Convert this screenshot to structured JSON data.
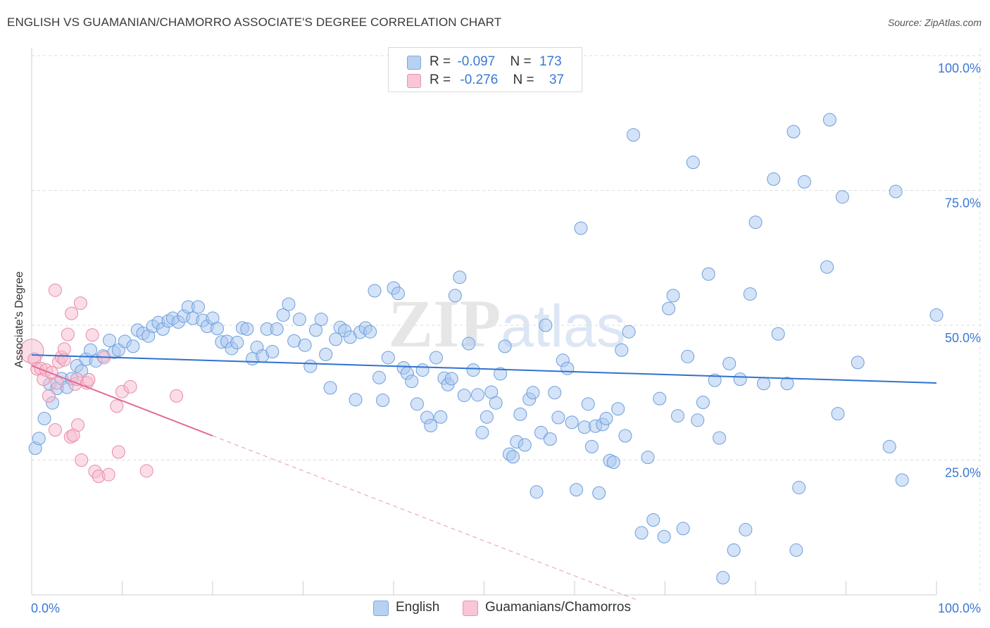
{
  "title": "ENGLISH VS GUAMANIAN/CHAMORRO ASSOCIATE'S DEGREE CORRELATION CHART",
  "source": "Source: ZipAtlas.com",
  "colors": {
    "blue_fill": "#a9c8f0",
    "blue_stroke": "#6c9fdc",
    "blue_line": "#2f72d0",
    "pink_fill": "#f6bccd",
    "pink_stroke": "#e88aa8",
    "pink_line": "#e36a94",
    "axis_text": "#3b78d4",
    "grid": "#dcdcdc"
  },
  "legend": {
    "rows": [
      {
        "r_label": "R =",
        "r_value": "-0.097",
        "n_label": "N =",
        "n_value": "173"
      },
      {
        "r_label": "R =",
        "r_value": "-0.276",
        "n_label": "N =",
        "n_value": "37"
      }
    ]
  },
  "bottom_legend": {
    "english": "English",
    "guam": "Guamanians/Chamorros"
  },
  "chart_data": {
    "type": "scatter",
    "title": "ENGLISH VS GUAMANIAN/CHAMORRO ASSOCIATE'S DEGREE CORRELATION CHART",
    "xlabel": "",
    "ylabel": "Associate's Degree",
    "xlim": [
      0,
      100
    ],
    "ylim": [
      0,
      100
    ],
    "x_tick_labels": [
      "0.0%",
      "100.0%"
    ],
    "y_tick_labels": [
      "25.0%",
      "50.0%",
      "75.0%",
      "100.0%"
    ],
    "y_ticks": [
      25,
      50,
      75,
      100
    ],
    "grid": "horizontal dashed",
    "legend_position": "top-center",
    "watermark": "ZIPatlas",
    "series": [
      {
        "name": "English",
        "R": -0.097,
        "N": 173,
        "trend": {
          "x": [
            0,
            100
          ],
          "y": [
            44.5,
            39.3
          ]
        },
        "points": [
          [
            0.4,
            27.2
          ],
          [
            0.8,
            29.0
          ],
          [
            1.4,
            32.7
          ],
          [
            2.0,
            39.1
          ],
          [
            2.3,
            35.6
          ],
          [
            2.8,
            38.3
          ],
          [
            3.3,
            40.1
          ],
          [
            3.9,
            38.5
          ],
          [
            4.4,
            40.1
          ],
          [
            5.0,
            42.5
          ],
          [
            5.5,
            41.5
          ],
          [
            6.0,
            43.7
          ],
          [
            6.5,
            45.4
          ],
          [
            7.1,
            43.4
          ],
          [
            7.9,
            44.3
          ],
          [
            8.6,
            47.2
          ],
          [
            9.1,
            45.0
          ],
          [
            9.6,
            45.4
          ],
          [
            10.3,
            47.0
          ],
          [
            11.2,
            46.1
          ],
          [
            11.7,
            49.1
          ],
          [
            12.3,
            48.5
          ],
          [
            12.9,
            48.0
          ],
          [
            13.4,
            49.8
          ],
          [
            14.0,
            50.5
          ],
          [
            14.5,
            49.3
          ],
          [
            15.1,
            50.8
          ],
          [
            15.6,
            51.3
          ],
          [
            16.2,
            50.6
          ],
          [
            16.8,
            51.7
          ],
          [
            17.3,
            53.4
          ],
          [
            17.8,
            51.3
          ],
          [
            18.4,
            53.4
          ],
          [
            18.9,
            50.9
          ],
          [
            19.4,
            49.8
          ],
          [
            20.0,
            51.3
          ],
          [
            20.5,
            49.4
          ],
          [
            21.0,
            46.9
          ],
          [
            21.6,
            47.0
          ],
          [
            22.1,
            45.7
          ],
          [
            22.7,
            46.8
          ],
          [
            23.3,
            49.5
          ],
          [
            23.8,
            49.3
          ],
          [
            24.4,
            43.8
          ],
          [
            24.9,
            45.9
          ],
          [
            25.5,
            44.3
          ],
          [
            26.0,
            49.3
          ],
          [
            26.6,
            45.1
          ],
          [
            27.1,
            49.3
          ],
          [
            27.8,
            51.9
          ],
          [
            28.4,
            53.9
          ],
          [
            29.0,
            47.1
          ],
          [
            29.6,
            51.1
          ],
          [
            30.2,
            46.3
          ],
          [
            30.8,
            42.4
          ],
          [
            31.4,
            49.1
          ],
          [
            32.0,
            51.1
          ],
          [
            32.5,
            44.6
          ],
          [
            33.0,
            38.4
          ],
          [
            33.6,
            47.4
          ],
          [
            34.1,
            49.6
          ],
          [
            34.6,
            49.0
          ],
          [
            35.2,
            47.8
          ],
          [
            35.8,
            36.2
          ],
          [
            36.3,
            48.7
          ],
          [
            36.9,
            49.5
          ],
          [
            37.4,
            48.8
          ],
          [
            37.9,
            56.4
          ],
          [
            38.4,
            40.3
          ],
          [
            38.8,
            36.1
          ],
          [
            39.4,
            44.0
          ],
          [
            40.0,
            56.9
          ],
          [
            40.5,
            55.9
          ],
          [
            41.1,
            42.1
          ],
          [
            41.5,
            41.1
          ],
          [
            42.0,
            39.6
          ],
          [
            42.6,
            35.4
          ],
          [
            43.2,
            41.7
          ],
          [
            43.7,
            32.9
          ],
          [
            44.1,
            31.4
          ],
          [
            44.7,
            44.0
          ],
          [
            45.2,
            33.0
          ],
          [
            45.6,
            40.2
          ],
          [
            46.0,
            39.0
          ],
          [
            46.4,
            40.1
          ],
          [
            46.8,
            55.5
          ],
          [
            47.3,
            58.9
          ],
          [
            47.8,
            37.0
          ],
          [
            48.3,
            46.6
          ],
          [
            48.8,
            41.7
          ],
          [
            49.3,
            37.1
          ],
          [
            49.8,
            30.1
          ],
          [
            50.3,
            33.0
          ],
          [
            50.8,
            37.6
          ],
          [
            51.3,
            35.6
          ],
          [
            51.8,
            41.0
          ],
          [
            52.3,
            46.1
          ],
          [
            52.8,
            26.1
          ],
          [
            53.2,
            25.6
          ],
          [
            53.6,
            28.4
          ],
          [
            54.0,
            33.5
          ],
          [
            54.5,
            27.8
          ],
          [
            55.0,
            36.3
          ],
          [
            55.4,
            37.5
          ],
          [
            55.8,
            19.1
          ],
          [
            56.3,
            30.1
          ],
          [
            56.8,
            50.0
          ],
          [
            57.3,
            28.9
          ],
          [
            57.8,
            37.5
          ],
          [
            58.2,
            32.9
          ],
          [
            58.7,
            43.5
          ],
          [
            59.2,
            42.0
          ],
          [
            59.7,
            32.0
          ],
          [
            60.2,
            19.5
          ],
          [
            60.7,
            68.0
          ],
          [
            61.1,
            31.1
          ],
          [
            61.5,
            35.4
          ],
          [
            61.9,
            27.5
          ],
          [
            62.3,
            31.3
          ],
          [
            62.7,
            18.9
          ],
          [
            63.1,
            31.6
          ],
          [
            63.5,
            32.7
          ],
          [
            63.9,
            24.9
          ],
          [
            64.3,
            24.6
          ],
          [
            64.8,
            34.5
          ],
          [
            65.2,
            45.4
          ],
          [
            65.6,
            29.5
          ],
          [
            66.0,
            48.8
          ],
          [
            66.5,
            85.3
          ],
          [
            67.4,
            11.5
          ],
          [
            68.1,
            25.5
          ],
          [
            68.7,
            13.9
          ],
          [
            69.4,
            36.4
          ],
          [
            69.9,
            10.8
          ],
          [
            70.4,
            53.1
          ],
          [
            70.9,
            55.5
          ],
          [
            71.4,
            33.2
          ],
          [
            72.0,
            12.3
          ],
          [
            72.5,
            44.2
          ],
          [
            73.1,
            80.2
          ],
          [
            73.6,
            32.4
          ],
          [
            74.2,
            35.7
          ],
          [
            74.8,
            59.5
          ],
          [
            75.5,
            39.8
          ],
          [
            76.0,
            29.1
          ],
          [
            76.4,
            3.2
          ],
          [
            77.1,
            42.9
          ],
          [
            77.6,
            8.3
          ],
          [
            78.3,
            40.0
          ],
          [
            78.9,
            12.1
          ],
          [
            79.4,
            55.8
          ],
          [
            80.0,
            69.1
          ],
          [
            80.9,
            39.2
          ],
          [
            82.0,
            77.1
          ],
          [
            82.5,
            48.4
          ],
          [
            83.5,
            39.2
          ],
          [
            84.2,
            85.9
          ],
          [
            84.5,
            8.3
          ],
          [
            84.8,
            19.9
          ],
          [
            85.4,
            76.6
          ],
          [
            87.9,
            60.8
          ],
          [
            88.2,
            88.1
          ],
          [
            89.1,
            33.6
          ],
          [
            89.6,
            73.8
          ],
          [
            91.3,
            43.1
          ],
          [
            94.8,
            27.5
          ],
          [
            95.5,
            74.8
          ],
          [
            96.2,
            21.3
          ],
          [
            100.0,
            51.9
          ]
        ]
      },
      {
        "name": "Guamanians/Chamorros",
        "R": -0.276,
        "N": 37,
        "trend": {
          "x": [
            0,
            20
          ],
          "y": [
            42.5,
            29.5
          ]
        },
        "trend_extension": {
          "x": [
            20,
            67
          ],
          "y": [
            29.5,
            -1.0
          ]
        },
        "points": [
          [
            0.0,
            45.2
          ],
          [
            0.3,
            43.7
          ],
          [
            0.6,
            41.9
          ],
          [
            1.0,
            42.0
          ],
          [
            1.3,
            40.0
          ],
          [
            1.6,
            41.7
          ],
          [
            1.9,
            36.9
          ],
          [
            2.2,
            41.2
          ],
          [
            2.6,
            30.6
          ],
          [
            2.8,
            39.3
          ],
          [
            2.6,
            56.5
          ],
          [
            3.0,
            43.2
          ],
          [
            3.3,
            44.1
          ],
          [
            3.6,
            43.6
          ],
          [
            3.6,
            45.6
          ],
          [
            4.0,
            48.3
          ],
          [
            4.3,
            29.3
          ],
          [
            4.4,
            52.2
          ],
          [
            4.6,
            29.6
          ],
          [
            4.8,
            39.1
          ],
          [
            5.0,
            40.0
          ],
          [
            5.1,
            31.5
          ],
          [
            5.4,
            54.1
          ],
          [
            5.5,
            25.0
          ],
          [
            6.1,
            39.3
          ],
          [
            6.3,
            39.9
          ],
          [
            6.7,
            48.2
          ],
          [
            7.0,
            22.9
          ],
          [
            7.4,
            22.0
          ],
          [
            8.0,
            44.0
          ],
          [
            8.5,
            22.3
          ],
          [
            9.4,
            35.0
          ],
          [
            9.6,
            26.5
          ],
          [
            10.0,
            37.7
          ],
          [
            10.9,
            38.6
          ],
          [
            12.7,
            23.0
          ],
          [
            16.0,
            36.9
          ]
        ]
      }
    ]
  }
}
